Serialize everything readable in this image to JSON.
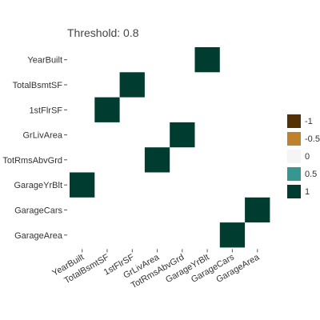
{
  "chart_data": {
    "type": "heatmap",
    "title": "Threshold: 0.8",
    "x_categories": [
      "YearBuilt",
      "TotalBsmtSF",
      "1stFlrSF",
      "GrLivArea",
      "TotRmsAbvGrd",
      "GarageYrBlt",
      "GarageCars",
      "GarageArea"
    ],
    "y_categories": [
      "YearBuilt",
      "TotalBsmtSF",
      "1stFlrSF",
      "GrLivArea",
      "TotRmsAbvGrd",
      "GarageYrBlt",
      "GarageCars",
      "GarageArea"
    ],
    "cells": [
      {
        "x": "GarageYrBlt",
        "y": "YearBuilt",
        "value": 1
      },
      {
        "x": "1stFlrSF",
        "y": "TotalBsmtSF",
        "value": 1
      },
      {
        "x": "TotalBsmtSF",
        "y": "1stFlrSF",
        "value": 1
      },
      {
        "x": "TotRmsAbvGrd",
        "y": "GrLivArea",
        "value": 1
      },
      {
        "x": "GrLivArea",
        "y": "TotRmsAbvGrd",
        "value": 1
      },
      {
        "x": "YearBuilt",
        "y": "GarageYrBlt",
        "value": 1
      },
      {
        "x": "GarageArea",
        "y": "GarageCars",
        "value": 1
      },
      {
        "x": "GarageCars",
        "y": "GarageArea",
        "value": 1
      }
    ],
    "color_scale": {
      "min": -1,
      "max": 1,
      "stops": [
        {
          "value": -1,
          "color": "#543005"
        },
        {
          "value": -0.5,
          "color": "#bf812d"
        },
        {
          "value": 0,
          "color": "#f5f5f5"
        },
        {
          "value": 0.5,
          "color": "#35978f"
        },
        {
          "value": 1,
          "color": "#003c30"
        }
      ]
    },
    "legend": {
      "position": "right",
      "labels": [
        "-1",
        "-0.5",
        "0",
        "0.5",
        "1"
      ]
    }
  }
}
